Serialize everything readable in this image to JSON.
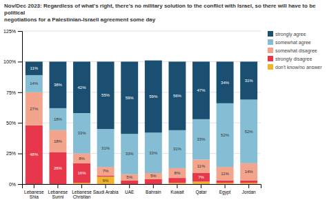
{
  "chart_data": {
    "type": "bar",
    "stacked": true,
    "title": "Nov/Dec 2023: Regardless of what's right, there's no military solution to the conflict with Israel, so there will have to be political\nnegotiations for a Palestinian-Israeli agreement some day",
    "categories": [
      "Lebanese\nShia",
      "Lebanese\nSunni",
      "Lebanese\nChristian",
      "Saudi Arabia",
      "UAE",
      "Bahrain",
      "Kuwait",
      "Qatar",
      "Egypt",
      "Jordan"
    ],
    "series": [
      {
        "name": "strongly agree",
        "color": "#1b4f72",
        "values": [
          11,
          38,
          42,
          55,
          59,
          59,
          56,
          47,
          34,
          31
        ],
        "value_labels": [
          "11%",
          "38%",
          "42%",
          "55%",
          "59%",
          "59%",
          "56%",
          "47%",
          "34%",
          "31%"
        ]
      },
      {
        "name": "somewhat agree",
        "color": "#85bdd4",
        "values": [
          14,
          18,
          33,
          31,
          33,
          33,
          31,
          33,
          52,
          52
        ],
        "value_labels": [
          "14%",
          "18%",
          "33%",
          "31%",
          "33%",
          "33%",
          "31%",
          "33%",
          "52%",
          "52%"
        ]
      },
      {
        "name": "somewhat disagree",
        "color": "#f2a48c",
        "values": [
          27,
          18,
          8,
          7,
          5,
          5,
          8,
          11,
          11,
          14
        ],
        "value_labels": [
          "27%",
          "18%",
          "8%",
          "7%",
          "5%",
          "5%",
          "8%",
          "11%",
          "11%",
          "14%"
        ]
      },
      {
        "name": "strongly disagree",
        "color": "#e8374a",
        "values": [
          48,
          26,
          16,
          1,
          3,
          4,
          4,
          7,
          2,
          2
        ],
        "value_labels": [
          "48%",
          "26%",
          "16%",
          null,
          null,
          null,
          null,
          "7%",
          null,
          null
        ]
      },
      {
        "name": "don't know/no answer",
        "color": "#f0b429",
        "values": [
          0,
          0,
          1,
          6,
          0,
          0,
          1,
          2,
          1,
          1
        ],
        "value_labels": [
          null,
          null,
          null,
          "6%",
          null,
          null,
          null,
          null,
          null,
          null
        ]
      }
    ],
    "ylim": [
      0,
      125
    ],
    "yticks": [
      {
        "value": 0,
        "label": "0%"
      },
      {
        "value": 25,
        "label": "25%"
      },
      {
        "value": 50,
        "label": "50%"
      },
      {
        "value": 75,
        "label": "75%"
      },
      {
        "value": 100,
        "label": "100%"
      },
      {
        "value": 125,
        "label": "125%"
      }
    ],
    "grid": true,
    "legend": "right",
    "data_labels": true
  }
}
